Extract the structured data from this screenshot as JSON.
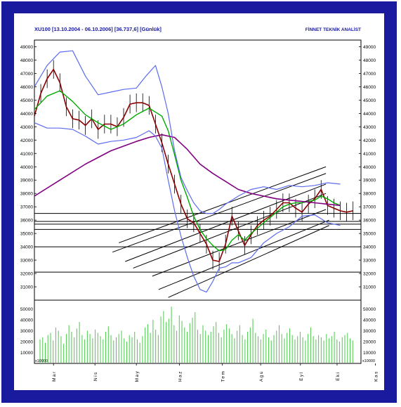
{
  "chart_data": {
    "type": "line",
    "title": "XU100 [13.10.2004 - 06.10.2006] [36.737,6] [Günlük]",
    "vendor": "FİNNET TEKNİK ANALİST",
    "price_axis": {
      "ylim": [
        30000,
        49500
      ],
      "ticks": [
        31000,
        32000,
        33000,
        34000,
        35000,
        36000,
        37000,
        38000,
        39000,
        40000,
        41000,
        42000,
        43000,
        44000,
        45000,
        46000,
        47000,
        48000,
        49000
      ]
    },
    "volume_axis": {
      "ylim": [
        0,
        58000
      ],
      "ticks": [
        10000,
        20000,
        30000,
        40000,
        50000
      ],
      "unit_label": "x10000"
    },
    "months": [
      "Mar",
      "Nis",
      "May",
      "Haz",
      "Tem",
      "Agu",
      "Eyl",
      "Eki",
      "Kas"
    ],
    "x_range": [
      0,
      205
    ],
    "month_x": [
      12,
      38,
      64,
      91,
      118,
      142,
      167,
      190,
      214
    ],
    "series": [
      {
        "role": "price",
        "color": "#8b0000",
        "x": [
          0,
          4,
          8,
          12,
          16,
          20,
          24,
          28,
          32,
          36,
          40,
          44,
          48,
          52,
          56,
          60,
          64,
          68,
          72,
          76,
          80,
          84,
          88,
          92,
          96,
          100,
          104,
          108,
          112,
          116,
          120,
          124,
          128,
          132,
          136,
          140,
          144,
          148,
          152,
          156,
          160,
          164,
          168,
          172,
          176,
          180,
          184,
          188,
          192,
          196,
          200
        ],
        "values": [
          43800,
          45500,
          46600,
          47300,
          46300,
          44500,
          43600,
          43500,
          43100,
          43600,
          42800,
          43200,
          43200,
          43000,
          43700,
          44700,
          44800,
          44800,
          44600,
          43200,
          41800,
          40200,
          38700,
          37200,
          36100,
          35800,
          35000,
          34200,
          33000,
          32900,
          34200,
          36300,
          35200,
          34100,
          34900,
          35600,
          36000,
          36300,
          36800,
          37300,
          37300,
          36900,
          36600,
          37200,
          37600,
          38300,
          37100,
          36900,
          36700,
          36600,
          36700
        ]
      },
      {
        "role": "short-ma",
        "color": "#00aa00",
        "x": [
          0,
          8,
          16,
          24,
          32,
          40,
          48,
          56,
          64,
          72,
          80,
          84,
          88,
          92,
          96,
          100,
          104,
          108,
          112,
          116,
          120,
          124,
          128,
          132,
          136,
          140,
          144,
          148,
          152,
          156,
          160,
          164,
          168,
          172,
          176,
          180,
          184,
          188,
          192
        ],
        "values": [
          44300,
          45300,
          45700,
          44900,
          43900,
          43300,
          42800,
          43200,
          43900,
          44400,
          43800,
          42700,
          40900,
          39000,
          37700,
          36300,
          35300,
          34600,
          34100,
          33700,
          33800,
          34500,
          34900,
          34500,
          35000,
          35400,
          35800,
          36200,
          36600,
          37000,
          37200,
          37300,
          37300,
          37400,
          37500,
          37800,
          37600,
          37300,
          37100
        ]
      },
      {
        "role": "long-ma",
        "color": "#800080",
        "x": [
          0,
          16,
          32,
          48,
          64,
          72,
          80,
          88,
          96,
          104,
          112,
          120,
          128,
          136,
          144,
          152,
          160,
          168,
          176,
          184,
          192
        ],
        "values": [
          37800,
          39000,
          40200,
          41200,
          41900,
          42200,
          42400,
          42200,
          41300,
          40200,
          39500,
          38900,
          38300,
          38000,
          37800,
          37600,
          37500,
          37400,
          37300,
          37200,
          37100
        ]
      },
      {
        "role": "band-upper",
        "color": "#5c6cf0",
        "x": [
          0,
          8,
          16,
          24,
          32,
          40,
          48,
          56,
          64,
          70,
          76,
          80,
          84,
          88,
          92,
          96,
          100,
          104,
          108,
          112,
          116,
          120,
          124,
          128,
          136,
          144,
          152,
          160,
          168,
          176,
          184,
          192
        ],
        "values": [
          46000,
          47600,
          48600,
          48700,
          46800,
          45400,
          45600,
          45800,
          45900,
          46800,
          47600,
          46000,
          44000,
          41200,
          39200,
          38200,
          37300,
          36700,
          36500,
          36500,
          36800,
          37200,
          37500,
          37800,
          38300,
          38500,
          38300,
          38600,
          38500,
          38600,
          38800,
          38700
        ]
      },
      {
        "role": "band-lower",
        "color": "#5c6cf0",
        "x": [
          0,
          8,
          16,
          24,
          32,
          40,
          48,
          56,
          64,
          72,
          76,
          80,
          84,
          88,
          92,
          96,
          100,
          104,
          108,
          112,
          116,
          120,
          124,
          128,
          136,
          144,
          152,
          160,
          168,
          176,
          184,
          192
        ],
        "values": [
          43300,
          42900,
          42900,
          42800,
          42300,
          41700,
          41900,
          42000,
          42200,
          42700,
          42300,
          41400,
          39000,
          36700,
          34800,
          33200,
          31800,
          30800,
          30600,
          31400,
          32400,
          32500,
          32800,
          32800,
          33200,
          34300,
          35000,
          35500,
          36300,
          36400,
          35800,
          35600
        ]
      }
    ],
    "horizontal_levels": [
      36500,
      35900,
      35700,
      35300,
      34000,
      32100
    ],
    "trend_channels": [
      {
        "x": [
          53,
          183
        ],
        "values": [
          34300,
          40000
        ]
      },
      {
        "x": [
          49,
          183
        ],
        "values": [
          33600,
          39500
        ]
      },
      {
        "x": [
          57,
          183
        ],
        "values": [
          32900,
          38700
        ]
      },
      {
        "x": [
          62,
          183
        ],
        "values": [
          32400,
          38000
        ]
      },
      {
        "x": [
          74,
          183
        ],
        "values": [
          31800,
          36800
        ]
      },
      {
        "x": [
          78,
          185
        ],
        "values": [
          30800,
          36000
        ]
      },
      {
        "x": [
          84,
          185
        ],
        "values": [
          30200,
          35600
        ]
      }
    ],
    "volume_values": [
      22000,
      24000,
      19000,
      26000,
      28000,
      21000,
      33000,
      30000,
      25000,
      18000,
      27000,
      35000,
      29000,
      24000,
      32000,
      38000,
      26000,
      22000,
      30000,
      27000,
      23000,
      31000,
      28000,
      25000,
      22000,
      29000,
      34000,
      26000,
      21000,
      24000,
      27000,
      30000,
      23000,
      20000,
      26000,
      24000,
      29000,
      22000,
      19000,
      25000,
      33000,
      36000,
      28000,
      40000,
      31000,
      26000,
      43000,
      48000,
      38000,
      41000,
      52000,
      35000,
      30000,
      44000,
      39000,
      33000,
      29000,
      37000,
      42000,
      47000,
      31000,
      27000,
      35000,
      30000,
      26000,
      29000,
      34000,
      38000,
      28000,
      24000,
      31000,
      36000,
      32000,
      27000,
      23000,
      30000,
      35000,
      26000,
      22000,
      29000,
      33000,
      41000,
      28000,
      25000,
      22000,
      27000,
      31000,
      24000,
      21000,
      26000,
      30000,
      35000,
      27000,
      23000,
      28000,
      32000,
      26000,
      22000,
      25000,
      29000,
      24000,
      21000,
      27000,
      33000,
      25000,
      22000,
      26000,
      24000,
      21000,
      27000,
      23000,
      25000,
      29000,
      22000,
      20000,
      24000,
      26000,
      28000,
      23000,
      21000
    ]
  }
}
